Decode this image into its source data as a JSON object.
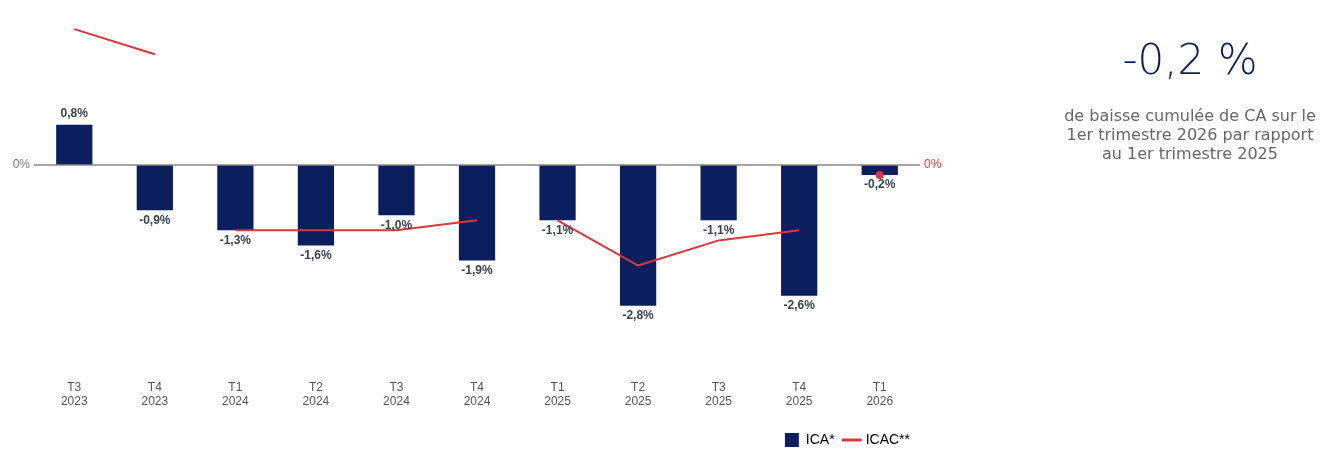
{
  "chart_data": {
    "type": "bar",
    "categories": [
      "T3\n2023",
      "T4\n2023",
      "T1\n2024",
      "T2\n2024",
      "T3\n2024",
      "T4\n2024",
      "T1\n2025",
      "T2\n2025",
      "T3\n2025",
      "T4\n2025",
      "T1\n2026"
    ],
    "series": [
      {
        "name": "ICA*",
        "color": "#0b1f5e",
        "values": [
          0.8,
          -0.9,
          -1.3,
          -1.6,
          -1.0,
          -1.9,
          -1.1,
          -2.8,
          -1.1,
          -2.6,
          -0.2
        ],
        "value_labels": [
          "0,8%",
          "-0,9%",
          "-1,3%",
          "-1,6%",
          "-1,0%",
          "-1,9%",
          "-1,1%",
          "-2,8%",
          "-1,1%",
          "-2,6%",
          "-0,2%"
        ]
      },
      {
        "name": "ICAC**",
        "type": "line",
        "color": "#d9363e",
        "values": [
          2.7,
          2.2,
          null,
          null,
          null,
          null,
          null,
          null,
          null,
          null,
          null
        ]
      },
      {
        "type": "line",
        "color": "#d9363e",
        "values": [
          null,
          null,
          -1.3,
          -1.3,
          -1.3,
          -1.1,
          null,
          null,
          null,
          null,
          null
        ]
      },
      {
        "type": "line",
        "color": "#d9363e",
        "values": [
          null,
          null,
          null,
          null,
          null,
          null,
          -1.1,
          -2.0,
          -1.5,
          -1.3,
          null
        ]
      },
      {
        "type": "line",
        "color": "#d9363e",
        "marker": "circle",
        "values": [
          null,
          null,
          null,
          null,
          null,
          null,
          null,
          null,
          null,
          null,
          -0.2
        ]
      }
    ],
    "grid": false,
    "legend": "bottom right",
    "annotations": [
      "0%",
      "0%",
      "-0,2 %",
      "de baisse cumulée de CA sur le 1er trimestre 2026 par rapport au 1er trimestre 2025"
    ]
  }
}
